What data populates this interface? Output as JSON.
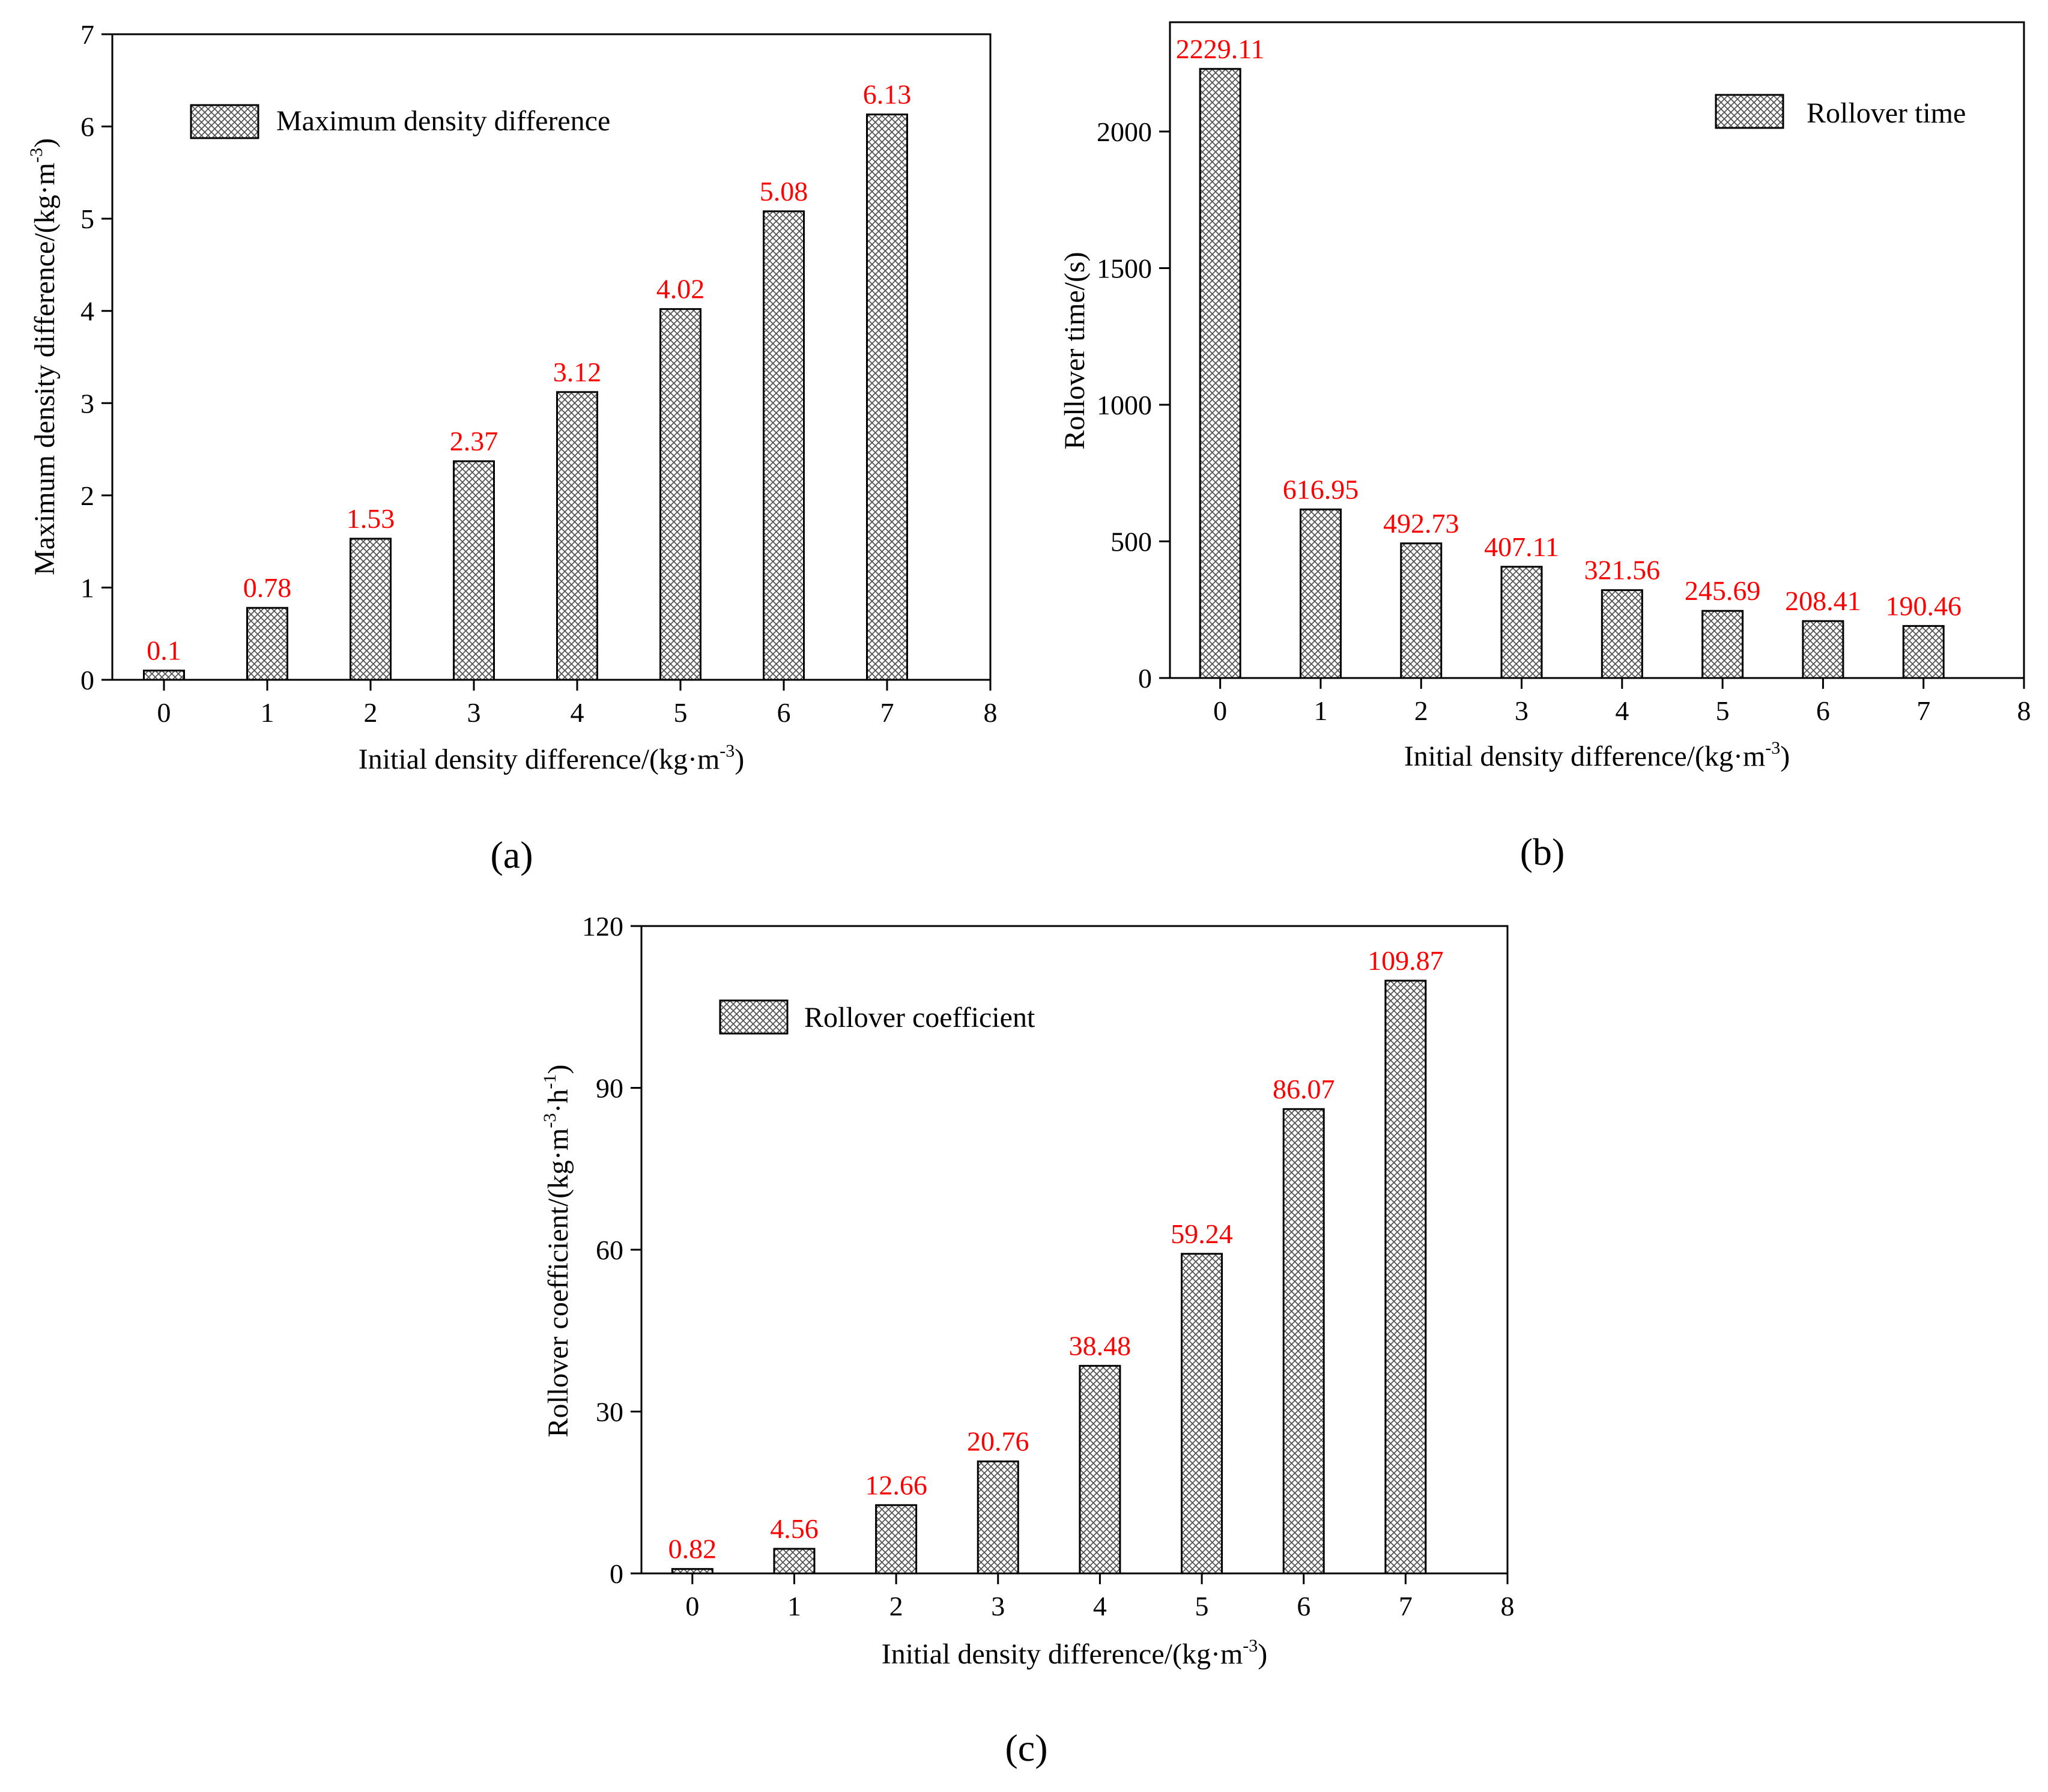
{
  "figure": {
    "panel_labels": [
      "(a)",
      "(b)",
      "(c)"
    ],
    "label_color": "#ff0000",
    "bar_color": "#555555"
  },
  "chart_data": [
    {
      "type": "bar",
      "panel": "(a)",
      "categories": [
        0,
        1,
        2,
        3,
        4,
        5,
        6,
        7
      ],
      "values": [
        0.1,
        0.78,
        1.53,
        2.37,
        3.12,
        4.02,
        5.08,
        6.13
      ],
      "value_labels": [
        "0.1",
        "0.78",
        "1.53",
        "2.37",
        "3.12",
        "4.02",
        "5.08",
        "6.13"
      ],
      "legend": "Maximum density difference",
      "legend_position": "top-left",
      "xlabel": "Initial density difference/(kg·m",
      "xlabel_exp": "-3",
      "ylabel": "Maximum density difference/(kg·m",
      "ylabel_exp": "-3",
      "xlim": [
        -0.5,
        8
      ],
      "ylim": [
        0,
        7
      ],
      "xticks": [
        0,
        1,
        2,
        3,
        4,
        5,
        6,
        7,
        8
      ],
      "yticks": [
        0,
        1,
        2,
        3,
        4,
        5,
        6,
        7
      ],
      "grid": false
    },
    {
      "type": "bar",
      "panel": "(b)",
      "categories": [
        0,
        1,
        2,
        3,
        4,
        5,
        6,
        7
      ],
      "values": [
        2229.11,
        616.95,
        492.73,
        407.11,
        321.56,
        245.69,
        208.41,
        190.46
      ],
      "value_labels": [
        "2229.11",
        "616.95",
        "492.73",
        "407.11",
        "321.56",
        "245.69",
        "208.41",
        "190.46"
      ],
      "legend": "Rollover time",
      "legend_position": "top-right",
      "xlabel": "Initial density difference/(kg·m",
      "xlabel_exp": "-3",
      "ylabel": "Rollover time/(s)",
      "xlim": [
        -0.5,
        8
      ],
      "ylim": [
        0,
        2400
      ],
      "xticks": [
        0,
        1,
        2,
        3,
        4,
        5,
        6,
        7,
        8
      ],
      "yticks": [
        0,
        500,
        1000,
        1500,
        2000
      ],
      "grid": false
    },
    {
      "type": "bar",
      "panel": "(c)",
      "categories": [
        0,
        1,
        2,
        3,
        4,
        5,
        6,
        7
      ],
      "values": [
        0.82,
        4.56,
        12.66,
        20.76,
        38.48,
        59.24,
        86.07,
        109.87
      ],
      "value_labels": [
        "0.82",
        "4.56",
        "12.66",
        "20.76",
        "38.48",
        "59.24",
        "86.07",
        "109.87"
      ],
      "legend": "Rollover coefficient",
      "legend_position": "top-left",
      "xlabel": "Initial density difference/(kg·m",
      "xlabel_exp": "-3",
      "ylabel": "Rollover coefficient/(kg·m",
      "ylabel_exp": "-3",
      "ylabel_mid": "·h",
      "ylabel_exp2": "-1",
      "xlim": [
        -0.5,
        8
      ],
      "ylim": [
        0,
        120
      ],
      "xticks": [
        0,
        1,
        2,
        3,
        4,
        5,
        6,
        7,
        8
      ],
      "yticks": [
        0,
        30,
        60,
        90,
        120
      ],
      "grid": false
    }
  ]
}
